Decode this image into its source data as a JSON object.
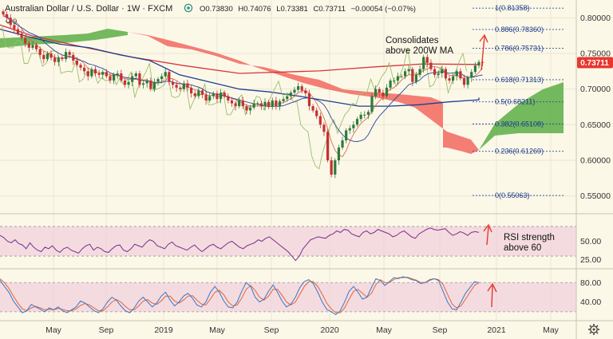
{
  "header": {
    "symbol": "Australian Dollar / U.S. Dollar",
    "interval": "1W",
    "source": "FXCM",
    "open": "O0.73830",
    "high": "H0.74076",
    "low": "L0.73381",
    "close": "C0.73711",
    "change": "−0.00054 (−0.07%)",
    "indicator_count": "9"
  },
  "colors": {
    "background": "#fcf8e8",
    "price_tag": "#e8372f",
    "cloud_bull": "#5cae45",
    "cloud_bear": "#f2695f",
    "ma200": "#d9363a",
    "ma_blue": "#1f3f8f",
    "tenkan": "#d56e5b",
    "kijun": "#2844a0",
    "chikou": "#9bbf6a",
    "rsi": "#7a2f8c",
    "stoch_k": "#3a78c6",
    "stoch_d": "#e0663a",
    "band_fill": "#efc8da",
    "candle_up": "#2e7a3a",
    "candle_down": "#c23232"
  },
  "chart_data": {
    "type": "candlestick",
    "title": "Australian Dollar / U.S. Dollar",
    "x_labels": [
      "May",
      "Sep",
      "2019",
      "May",
      "Sep",
      "2020",
      "May",
      "Sep",
      "2021",
      "May"
    ],
    "y_ticks": [
      "0.80000",
      "0.75000",
      "0.70000",
      "0.65000",
      "0.60000",
      "0.55000"
    ],
    "ylim": [
      0.525,
      0.825
    ],
    "last_price": "0.73711",
    "last_price_value": 0.73711,
    "fib_levels": [
      {
        "label": "1(0.81358)",
        "value": 0.81358
      },
      {
        "label": "0.886(0.78360)",
        "value": 0.7836
      },
      {
        "label": "0.786(0.75731)",
        "value": 0.75731
      },
      {
        "label": "0.618(0.71313)",
        "value": 0.71313
      },
      {
        "label": "0.5(0.68211)",
        "value": 0.68211
      },
      {
        "label": "0.382(0.65108)",
        "value": 0.65108
      },
      {
        "label": "0.236(0.61269)",
        "value": 0.61269
      },
      {
        "label": "0(0.55063)",
        "value": 0.55063
      }
    ],
    "closes": [
      0.805,
      0.8,
      0.79,
      0.784,
      0.778,
      0.772,
      0.764,
      0.758,
      0.762,
      0.756,
      0.748,
      0.742,
      0.75,
      0.744,
      0.738,
      0.744,
      0.742,
      0.752,
      0.748,
      0.74,
      0.734,
      0.73,
      0.725,
      0.718,
      0.728,
      0.722,
      0.72,
      0.724,
      0.718,
      0.712,
      0.72,
      0.722,
      0.712,
      0.706,
      0.71,
      0.718,
      0.722,
      0.706,
      0.708,
      0.712,
      0.7,
      0.71,
      0.714,
      0.718,
      0.724,
      0.71,
      0.706,
      0.702,
      0.7,
      0.708,
      0.702,
      0.694,
      0.69,
      0.698,
      0.692,
      0.684,
      0.69,
      0.694,
      0.686,
      0.695,
      0.69,
      0.684,
      0.68,
      0.676,
      0.684,
      0.676,
      0.67,
      0.674,
      0.68,
      0.68,
      0.676,
      0.682,
      0.675,
      0.684,
      0.676,
      0.683,
      0.686,
      0.69,
      0.695,
      0.699,
      0.704,
      0.698,
      0.694,
      0.676,
      0.67,
      0.662,
      0.65,
      0.64,
      0.6,
      0.58,
      0.6,
      0.618,
      0.628,
      0.642,
      0.645,
      0.65,
      0.658,
      0.664,
      0.664,
      0.668,
      0.69,
      0.7,
      0.695,
      0.69,
      0.702,
      0.712,
      0.712,
      0.718,
      0.718,
      0.725,
      0.728,
      0.71,
      0.72,
      0.728,
      0.745,
      0.737,
      0.728,
      0.72,
      0.722,
      0.728,
      0.715,
      0.712,
      0.718,
      0.725,
      0.715,
      0.706,
      0.716,
      0.724,
      0.733,
      0.738,
      0.737
    ],
    "ma200": [
      0.79,
      0.775,
      0.76,
      0.745,
      0.733,
      0.722,
      0.7255,
      0.7312,
      0.7352
    ],
    "ma200_x": [
      0,
      40,
      100,
      165,
      230,
      300,
      400,
      470,
      530
    ],
    "ma_blue": [
      0.784,
      0.773,
      0.763,
      0.758,
      0.748,
      0.74,
      0.72,
      0.71,
      0.7,
      0.696,
      0.69,
      0.683,
      0.676,
      0.676,
      0.678,
      0.682,
      0.685
    ],
    "ma_blue_x": [
      0,
      30,
      60,
      90,
      120,
      150,
      180,
      210,
      240,
      270,
      300,
      330,
      360,
      390,
      420,
      450,
      480
    ],
    "annotations": [
      "Consolidates\nabove 200W MA",
      "RSI strength\nabove 60"
    ],
    "rsi": {
      "ticks": [
        "50.00",
        "25.00"
      ],
      "ylim": [
        15,
        85
      ],
      "upper": 70,
      "lower": 30,
      "values": [
        58,
        55,
        50,
        48,
        52,
        47,
        45,
        40,
        48,
        42,
        38,
        36,
        42,
        40,
        44,
        38,
        35,
        40,
        42,
        38,
        36,
        34,
        40,
        44,
        46,
        38,
        42,
        40,
        36,
        35,
        40,
        44,
        45,
        38,
        36,
        40,
        46,
        44,
        42,
        48,
        52,
        50,
        44,
        42,
        40,
        46,
        49,
        44,
        42,
        40,
        38,
        42,
        45,
        40,
        36,
        40,
        44,
        46,
        42,
        40,
        44,
        48,
        50,
        46,
        42,
        40,
        44,
        46,
        48,
        52,
        50,
        54,
        56,
        52,
        48,
        44,
        40,
        36,
        30,
        24,
        30,
        40,
        46,
        52,
        54,
        56,
        55,
        54,
        58,
        60,
        64,
        62,
        66,
        65,
        60,
        58,
        56,
        62,
        64,
        60,
        62,
        66,
        64,
        62,
        60,
        56,
        58,
        62,
        64,
        60,
        56,
        54,
        60,
        63,
        66,
        68,
        66,
        65,
        66,
        67,
        62,
        58,
        60,
        63,
        61,
        58,
        62,
        63,
        62
      ]
    },
    "stoch": {
      "ticks": [
        "80.00",
        "40.00"
      ],
      "ylim": [
        5,
        105
      ],
      "upper": 80,
      "lower": 20,
      "k": [
        85,
        72,
        60,
        42,
        30,
        18,
        22,
        35,
        30,
        25,
        20,
        28,
        24,
        30,
        22,
        18,
        24,
        30,
        42,
        38,
        30,
        22,
        18,
        26,
        40,
        50,
        44,
        32,
        22,
        18,
        28,
        42,
        50,
        40,
        30,
        38,
        52,
        60,
        44,
        32,
        40,
        52,
        58,
        48,
        34,
        30,
        40,
        60,
        72,
        60,
        42,
        30,
        28,
        40,
        62,
        80,
        72,
        50,
        40,
        46,
        62,
        75,
        60,
        42,
        30,
        36,
        50,
        70,
        82,
        86,
        78,
        60,
        40,
        25,
        20,
        14,
        22,
        40,
        62,
        72,
        60,
        46,
        50,
        70,
        88,
        84,
        74,
        82,
        90,
        88,
        92,
        90,
        86,
        84,
        78,
        80,
        86,
        88,
        84,
        62,
        40,
        26,
        24,
        40,
        58,
        70,
        82,
        80
      ],
      "d": [
        88,
        80,
        68,
        52,
        38,
        26,
        22,
        28,
        31,
        28,
        24,
        25,
        24,
        27,
        25,
        22,
        22,
        26,
        33,
        37,
        34,
        28,
        22,
        22,
        30,
        40,
        45,
        40,
        31,
        24,
        24,
        32,
        42,
        45,
        38,
        35,
        42,
        52,
        52,
        42,
        38,
        44,
        52,
        53,
        44,
        36,
        34,
        46,
        60,
        64,
        55,
        40,
        32,
        34,
        48,
        66,
        74,
        64,
        50,
        44,
        52,
        66,
        66,
        54,
        40,
        34,
        40,
        56,
        72,
        82,
        82,
        72,
        56,
        38,
        26,
        18,
        18,
        28,
        46,
        62,
        66,
        58,
        50,
        58,
        76,
        86,
        80,
        80,
        86,
        90,
        90,
        91,
        88,
        85,
        80,
        80,
        84,
        88,
        86,
        76,
        56,
        36,
        28,
        32,
        46,
        60,
        74,
        80
      ]
    }
  }
}
